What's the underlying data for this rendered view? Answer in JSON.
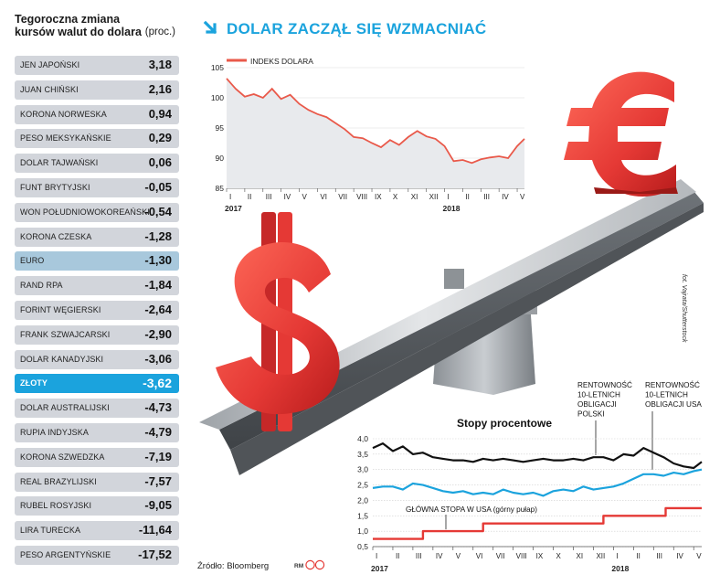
{
  "headline": "DOLAR ZACZĄŁ SIĘ WZMACNIAĆ",
  "colors": {
    "accent": "#1ba3dd",
    "red": "#e53935",
    "dollar_index_line": "#e9594a",
    "black": "#111111"
  },
  "table": {
    "title_line1": "Tegoroczna zmiana",
    "title_line2": "kursów walut do dolara",
    "unit": "(proc.)",
    "rows": [
      {
        "name": "JEN JAPOŃSKI",
        "value": "3,18"
      },
      {
        "name": "JUAN CHIŃSKI",
        "value": "2,16"
      },
      {
        "name": "KORONA NORWESKA",
        "value": "0,94"
      },
      {
        "name": "PESO MEKSYKAŃSKIE",
        "value": "0,29"
      },
      {
        "name": "DOLAR TAJWAŃSKI",
        "value": "0,06"
      },
      {
        "name": "FUNT BRYTYJSKI",
        "value": "-0,05"
      },
      {
        "name": "WON POŁUDNIOWOKOREAŃSKI",
        "value": "-0,54"
      },
      {
        "name": "KORONA CZESKA",
        "value": "-1,28"
      },
      {
        "name": "EURO",
        "value": "-1,30",
        "highlight": "euro"
      },
      {
        "name": "RAND RPA",
        "value": "-1,84"
      },
      {
        "name": "FORINT WĘGIERSKI",
        "value": "-2,64"
      },
      {
        "name": "FRANK SZWAJCARSKI",
        "value": "-2,90"
      },
      {
        "name": "DOLAR KANADYJSKI",
        "value": "-3,06"
      },
      {
        "name": "ZŁOTY",
        "value": "-3,62",
        "highlight": "zloty"
      },
      {
        "name": "DOLAR AUSTRALIJSKI",
        "value": "-4,73"
      },
      {
        "name": "RUPIA INDYJSKA",
        "value": "-4,79"
      },
      {
        "name": "KORONA SZWEDZKA",
        "value": "-7,19"
      },
      {
        "name": "REAL BRAZYLIJSKI",
        "value": "-7,57"
      },
      {
        "name": "RUBEL ROSYJSKI",
        "value": "-9,05"
      },
      {
        "name": "LIRA TURECKA",
        "value": "-11,64"
      },
      {
        "name": "PESO ARGENTYŃSKIE",
        "value": "-17,52"
      }
    ]
  },
  "footer": {
    "source": "Źródło: Bloomberg",
    "credit": "RM",
    "photo_credit": "fot. Vajrata/Shutterstock"
  },
  "chart_data": [
    {
      "type": "line",
      "legend": "INDEKS DOLARA",
      "ylim": [
        85,
        105
      ],
      "yticks": [
        "85",
        "90",
        "95",
        "100",
        "105"
      ],
      "xticks": [
        "I",
        "II",
        "III",
        "IV",
        "V",
        "VI",
        "VII",
        "VIII",
        "IX",
        "X",
        "XI",
        "XII",
        "I",
        "II",
        "III",
        "IV",
        "V"
      ],
      "years": [
        "2017",
        "2018"
      ],
      "series": [
        {
          "name": "INDEKS DOLARA",
          "x": [
            0,
            0.5,
            1,
            1.5,
            2,
            2.5,
            3,
            3.5,
            4,
            4.5,
            5,
            5.5,
            6,
            6.5,
            7,
            7.5,
            8,
            8.5,
            9,
            9.5,
            10,
            10.5,
            11,
            11.5,
            12,
            12.5,
            13,
            13.5,
            14,
            14.5,
            15,
            15.5,
            16,
            16.4
          ],
          "values": [
            103.2,
            101.5,
            100.2,
            100.6,
            100.0,
            101.5,
            99.8,
            100.5,
            99.0,
            98.0,
            97.3,
            96.8,
            95.8,
            94.8,
            93.5,
            93.3,
            92.5,
            91.8,
            93.0,
            92.2,
            93.5,
            94.5,
            93.6,
            93.2,
            92.0,
            89.5,
            89.7,
            89.2,
            89.8,
            90.1,
            90.3,
            90.0,
            92.0,
            93.2
          ]
        }
      ]
    },
    {
      "type": "line",
      "title": "Stopy procentowe",
      "ylim": [
        0.5,
        4.0
      ],
      "yticks": [
        "0,5",
        "1,0",
        "1,5",
        "2,0",
        "2,5",
        "3,0",
        "3,5",
        "4,0"
      ],
      "xticks": [
        "I",
        "II",
        "III",
        "IV",
        "V",
        "VI",
        "VII",
        "VIII",
        "IX",
        "X",
        "XI",
        "XII",
        "I",
        "II",
        "III",
        "IV",
        "V"
      ],
      "years": [
        "2017",
        "2018"
      ],
      "annotations": {
        "poland": "RENTOWNOŚĆ 10-LETNICH OBLIGACJI POLSKI",
        "usa": "RENTOWNOŚĆ 10-LETNICH OBLIGACJI USA",
        "fed": "GŁÓWNA STOPA W USA (górny pułap)"
      },
      "series": [
        {
          "name": "RENTOWNOŚĆ 10-LETNICH OBLIGACJI POLSKI",
          "x": [
            0,
            0.5,
            1,
            1.5,
            2,
            2.5,
            3,
            3.5,
            4,
            4.5,
            5,
            5.5,
            6,
            6.5,
            7,
            7.5,
            8,
            8.5,
            9,
            9.5,
            10,
            10.5,
            11,
            11.5,
            12,
            12.5,
            13,
            13.5,
            14,
            14.5,
            15,
            15.5,
            16,
            16.4
          ],
          "values": [
            3.7,
            3.85,
            3.6,
            3.75,
            3.5,
            3.55,
            3.4,
            3.35,
            3.3,
            3.3,
            3.25,
            3.35,
            3.3,
            3.35,
            3.3,
            3.25,
            3.3,
            3.35,
            3.3,
            3.3,
            3.35,
            3.3,
            3.4,
            3.4,
            3.3,
            3.5,
            3.45,
            3.7,
            3.55,
            3.4,
            3.2,
            3.1,
            3.05,
            3.25
          ]
        },
        {
          "name": "RENTOWNOŚĆ 10-LETNICH OBLIGACJI USA",
          "x": [
            0,
            0.5,
            1,
            1.5,
            2,
            2.5,
            3,
            3.5,
            4,
            4.5,
            5,
            5.5,
            6,
            6.5,
            7,
            7.5,
            8,
            8.5,
            9,
            9.5,
            10,
            10.5,
            11,
            11.5,
            12,
            12.5,
            13,
            13.5,
            14,
            14.5,
            15,
            15.5,
            16,
            16.4
          ],
          "values": [
            2.4,
            2.45,
            2.45,
            2.35,
            2.55,
            2.5,
            2.4,
            2.3,
            2.25,
            2.3,
            2.2,
            2.25,
            2.2,
            2.35,
            2.25,
            2.2,
            2.25,
            2.15,
            2.3,
            2.35,
            2.3,
            2.45,
            2.35,
            2.4,
            2.45,
            2.55,
            2.7,
            2.85,
            2.85,
            2.8,
            2.9,
            2.85,
            2.95,
            3.0
          ]
        },
        {
          "name": "GŁÓWNA STOPA W USA (górny pułap)",
          "x": [
            0,
            2.5,
            2.5,
            5.5,
            5.5,
            11.5,
            11.5,
            14.6,
            14.6,
            16.4
          ],
          "values": [
            0.75,
            0.75,
            1.0,
            1.0,
            1.25,
            1.25,
            1.5,
            1.5,
            1.75,
            1.75
          ],
          "step": true
        }
      ]
    }
  ]
}
